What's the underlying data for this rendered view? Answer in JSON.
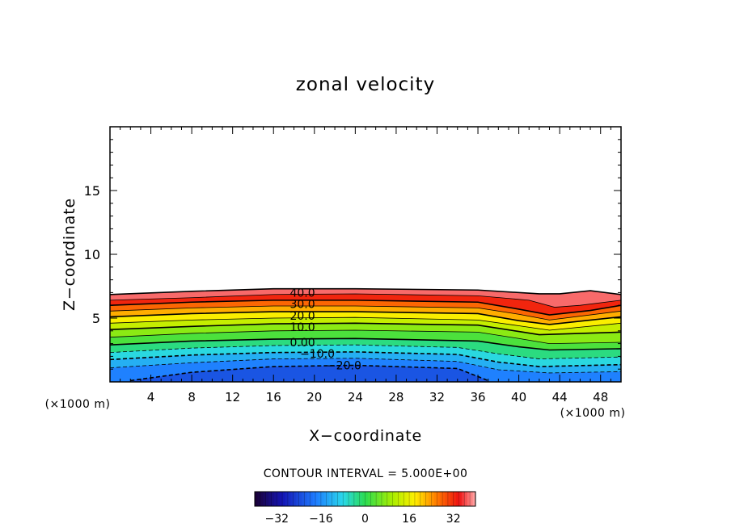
{
  "chart_data": {
    "type": "heatmap",
    "title": "zonal velocity",
    "xlabel": "X−coordinate",
    "ylabel": "Z−coordinate",
    "x_unit_left": "(×1000 m)",
    "x_unit_right": "(×1000 m)",
    "xlim": [
      0,
      50
    ],
    "ylim": [
      0,
      20
    ],
    "x_ticks": [
      4,
      8,
      12,
      16,
      20,
      24,
      28,
      32,
      36,
      40,
      44,
      48
    ],
    "y_ticks": [
      5,
      10,
      15
    ],
    "contour_interval_text": "CONTOUR INTERVAL = 5.000E+00",
    "colorbar": {
      "range": [
        -40,
        40
      ],
      "ticks": [
        -32,
        -16,
        0,
        16,
        32
      ],
      "tick_labels": [
        "−32",
        "−16",
        "0",
        "16",
        "32"
      ]
    },
    "contour_labels": [
      {
        "text": "40.0",
        "x": 17.6,
        "y": 7.0,
        "value": 40
      },
      {
        "text": "30.0",
        "x": 17.6,
        "y": 6.1,
        "value": 30
      },
      {
        "text": "20.0",
        "x": 17.6,
        "y": 5.2,
        "value": 20
      },
      {
        "text": "10.0",
        "x": 17.6,
        "y": 4.3,
        "value": 10
      },
      {
        "text": "0.00",
        "x": 17.6,
        "y": 3.1,
        "value": 0
      },
      {
        "text": "−10.0",
        "x": 18.6,
        "y": 2.2,
        "value": -10
      },
      {
        "text": "−20.0",
        "x": 21.2,
        "y": 1.3,
        "value": -20
      }
    ],
    "contours": [
      {
        "value": 40,
        "points": [
          [
            0,
            6.85
          ],
          [
            8,
            7.1
          ],
          [
            16,
            7.3
          ],
          [
            24,
            7.3
          ],
          [
            36,
            7.2
          ],
          [
            42,
            6.9
          ],
          [
            44,
            6.9
          ],
          [
            47,
            7.15
          ],
          [
            50,
            6.85
          ]
        ]
      },
      {
        "value": 35,
        "points": [
          [
            0,
            6.4
          ],
          [
            8,
            6.6
          ],
          [
            16,
            6.85
          ],
          [
            24,
            6.9
          ],
          [
            36,
            6.75
          ],
          [
            41,
            6.4
          ],
          [
            43.5,
            5.85
          ],
          [
            46,
            6.0
          ],
          [
            50,
            6.4
          ]
        ]
      },
      {
        "value": 30,
        "points": [
          [
            0,
            6.0
          ],
          [
            8,
            6.25
          ],
          [
            16,
            6.4
          ],
          [
            24,
            6.4
          ],
          [
            36,
            6.25
          ],
          [
            40,
            5.7
          ],
          [
            43,
            5.25
          ],
          [
            47,
            5.6
          ],
          [
            50,
            6.0
          ]
        ]
      },
      {
        "value": 25,
        "points": [
          [
            0,
            5.55
          ],
          [
            8,
            5.8
          ],
          [
            16,
            5.95
          ],
          [
            24,
            5.95
          ],
          [
            36,
            5.8
          ],
          [
            40,
            5.3
          ],
          [
            43,
            4.85
          ],
          [
            50,
            5.55
          ]
        ]
      },
      {
        "value": 20,
        "points": [
          [
            0,
            5.1
          ],
          [
            8,
            5.35
          ],
          [
            16,
            5.5
          ],
          [
            24,
            5.5
          ],
          [
            36,
            5.35
          ],
          [
            40,
            4.8
          ],
          [
            43,
            4.5
          ],
          [
            50,
            5.1
          ]
        ]
      },
      {
        "value": 15,
        "points": [
          [
            0,
            4.6
          ],
          [
            8,
            4.85
          ],
          [
            16,
            5.0
          ],
          [
            24,
            5.05
          ],
          [
            36,
            4.85
          ],
          [
            40,
            4.4
          ],
          [
            43,
            4.05
          ],
          [
            50,
            4.6
          ]
        ]
      },
      {
        "value": 10,
        "points": [
          [
            0,
            4.1
          ],
          [
            8,
            4.35
          ],
          [
            16,
            4.55
          ],
          [
            24,
            4.6
          ],
          [
            36,
            4.45
          ],
          [
            40,
            3.95
          ],
          [
            42,
            3.7
          ],
          [
            50,
            3.9
          ]
        ]
      },
      {
        "value": 5,
        "points": [
          [
            0,
            3.5
          ],
          [
            8,
            3.8
          ],
          [
            16,
            4.0
          ],
          [
            24,
            4.05
          ],
          [
            36,
            3.9
          ],
          [
            40,
            3.4
          ],
          [
            43,
            3.0
          ],
          [
            50,
            3.1
          ]
        ]
      },
      {
        "value": 0,
        "points": [
          [
            0,
            2.9
          ],
          [
            8,
            3.2
          ],
          [
            16,
            3.35
          ],
          [
            24,
            3.4
          ],
          [
            36,
            3.2
          ],
          [
            40,
            2.75
          ],
          [
            43,
            2.5
          ],
          [
            50,
            2.6
          ]
        ]
      },
      {
        "value": -5,
        "points": [
          [
            0,
            2.3
          ],
          [
            8,
            2.65
          ],
          [
            16,
            2.85
          ],
          [
            24,
            2.9
          ],
          [
            34,
            2.7
          ],
          [
            38,
            2.2
          ],
          [
            42,
            1.8
          ],
          [
            50,
            1.95
          ]
        ]
      },
      {
        "value": -10,
        "points": [
          [
            0,
            1.75
          ],
          [
            8,
            2.1
          ],
          [
            16,
            2.3
          ],
          [
            24,
            2.35
          ],
          [
            34,
            2.15
          ],
          [
            38,
            1.55
          ],
          [
            42,
            1.2
          ],
          [
            50,
            1.35
          ]
        ]
      },
      {
        "value": -15,
        "points": [
          [
            0,
            1.1
          ],
          [
            8,
            1.5
          ],
          [
            16,
            1.8
          ],
          [
            24,
            1.85
          ],
          [
            34,
            1.6
          ],
          [
            38,
            0.95
          ],
          [
            43,
            0.7
          ],
          [
            50,
            0.8
          ]
        ]
      },
      {
        "value": -20,
        "points": [
          [
            2,
            0.1
          ],
          [
            8,
            0.75
          ],
          [
            16,
            1.2
          ],
          [
            24,
            1.3
          ],
          [
            34,
            1.05
          ],
          [
            37,
            0.1
          ]
        ]
      }
    ]
  }
}
